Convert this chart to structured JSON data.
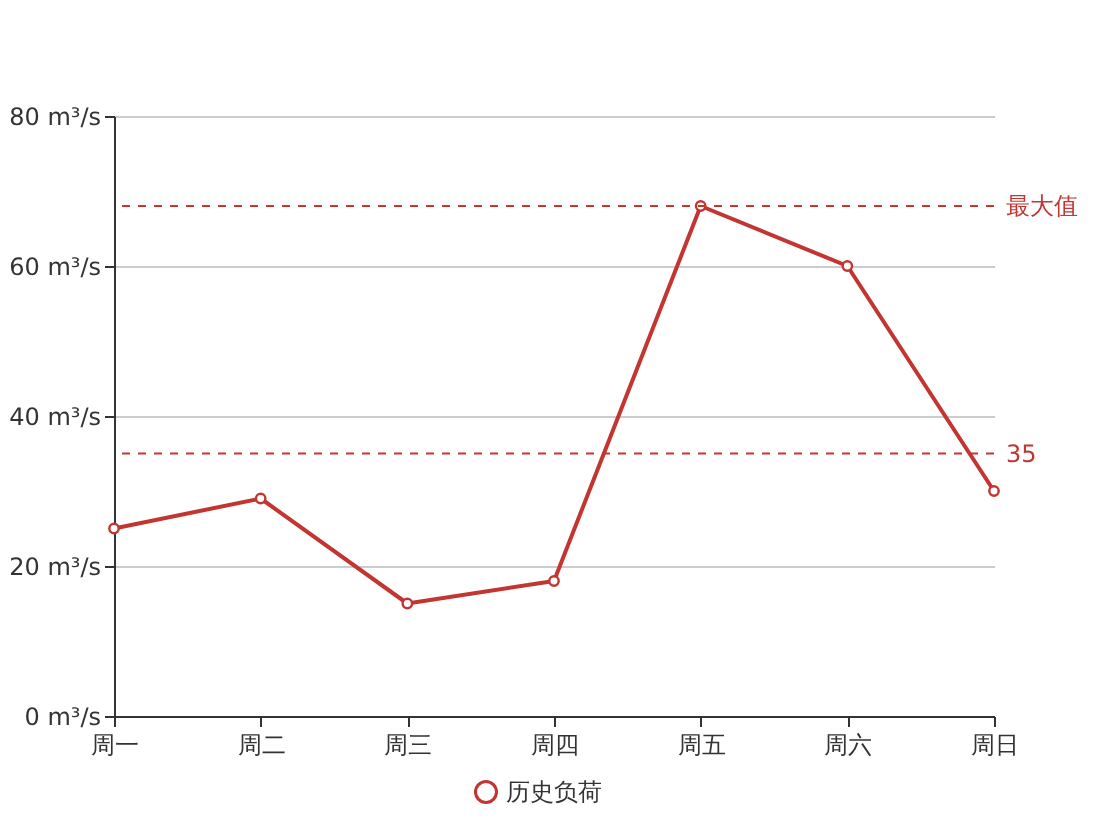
{
  "chart_data": {
    "type": "line",
    "categories": [
      "周一",
      "周二",
      "周三",
      "周四",
      "周五",
      "周六",
      "周日"
    ],
    "series": [
      {
        "name": "历史负荷",
        "color": "#c23531",
        "values": [
          25,
          29,
          15,
          18,
          68,
          60,
          30
        ]
      }
    ],
    "ylim": [
      0,
      80
    ],
    "yticks": [
      {
        "value": 0,
        "label": "0 m³/s"
      },
      {
        "value": 20,
        "label": "20 m³/s"
      },
      {
        "value": 40,
        "label": "40 m³/s"
      },
      {
        "value": 60,
        "label": "60 m³/s"
      },
      {
        "value": 80,
        "label": "80 m³/s"
      }
    ],
    "grid": "y",
    "legend": "bottom",
    "marker": "circle",
    "line_style": "solid",
    "ref_lines": [
      {
        "axis": "y",
        "value": 35,
        "label": "35",
        "color": "#c23531",
        "line_style": "dashed"
      },
      {
        "axis": "y",
        "value": 68,
        "label": "最大值",
        "color": "#c23531",
        "line_style": "dashed"
      }
    ]
  }
}
